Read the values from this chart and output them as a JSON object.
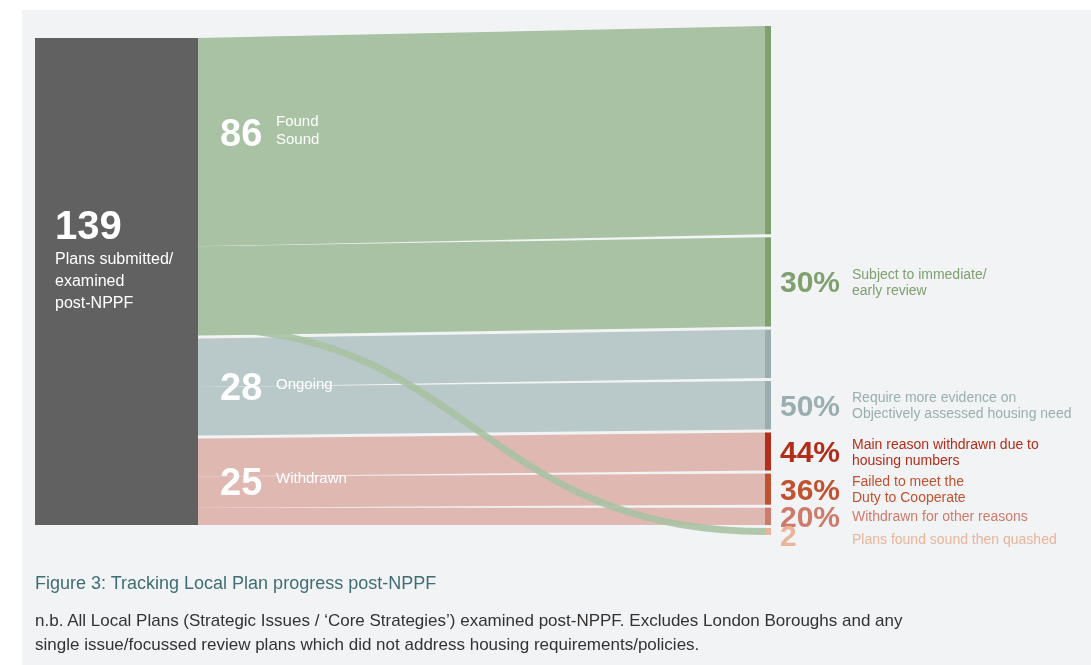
{
  "chart_data": {
    "type": "other",
    "title": "Figure 3: Tracking Local Plan progress post-NPPF",
    "annotations": [
      "n.b. All Local Plans (Strategic Issues / ‘Core Strategies’) examined post-NPPF. Excludes London Boroughs and any\nsingle issue/focussed review plans which did not address housing requirements/policies."
    ],
    "categories": [
      "Plans submitted/\nexamined\npost-NPPF",
      "Found\nSound",
      "Ongoing",
      "Withdrawn",
      "Subject to immediate/\nearly review",
      "Require more evidence on\nObjectively assessed housing need",
      "Main reason withdrawn due to\nhousing numbers",
      "Failed to meet the\nDuty to Cooperate",
      "Withdrawn for other reasons",
      "Plans found sound then quashed"
    ],
    "values": [
      139,
      86,
      28,
      25,
      30,
      50,
      44,
      36,
      20,
      2
    ],
    "value_labels": [
      "139",
      "86",
      "28",
      "25",
      "30%",
      "50%",
      "44%",
      "36%",
      "20%",
      "2"
    ],
    "colors": [
      "#616161",
      "#a9c2a3",
      "#b9c8c8",
      "#e0b8b2",
      "#7fa06f",
      "#9aaeb0",
      "#b22e1a",
      "#c0522f",
      "#cf7b6b",
      "#e8b49a"
    ]
  }
}
